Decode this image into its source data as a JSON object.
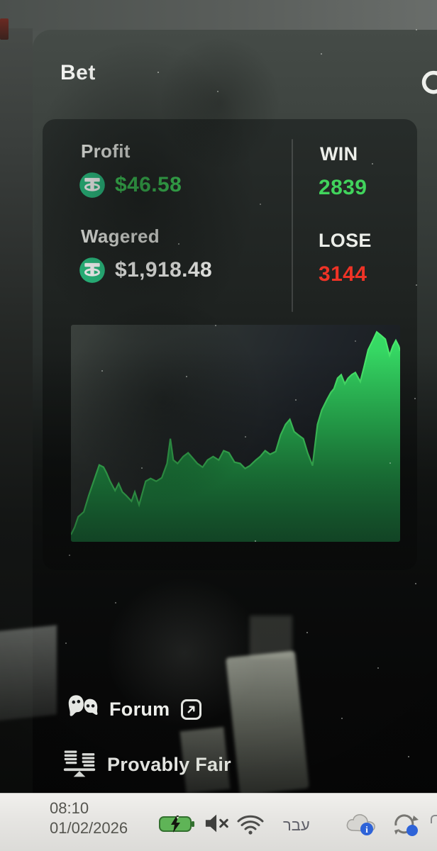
{
  "colors": {
    "accent-green": "#41d45c",
    "loss-red": "#ee3326",
    "tether-green": "#2abf81",
    "text-primary": "#f1f2ef",
    "taskbar-text": "#55554f"
  },
  "header": {
    "title": "Bet",
    "refresh_icon": "refresh-icon"
  },
  "stats": {
    "profit": {
      "label": "Profit",
      "value": "$46.58",
      "currency_icon": "tether-icon"
    },
    "wagered": {
      "label": "Wagered",
      "value": "$1,918.48",
      "currency_icon": "tether-icon"
    },
    "win": {
      "label": "WIN",
      "value": "2839"
    },
    "lose": {
      "label": "LOSE",
      "value": "3144"
    }
  },
  "chart_data": {
    "type": "area",
    "title": "",
    "xlabel": "",
    "ylabel": "",
    "x_range": [
      0,
      100
    ],
    "y_range": [
      0,
      100
    ],
    "grid": false,
    "legend": false,
    "line_color": "#49e86c",
    "fill_top": "#38dd66",
    "fill_mid": "#2bbd57",
    "fill_bottom": "#1f8746",
    "points": [
      [
        0,
        3.3
      ],
      [
        1.1,
        6.6
      ],
      [
        2.2,
        11.5
      ],
      [
        3.9,
        13.8
      ],
      [
        5.4,
        21.3
      ],
      [
        6.9,
        27.9
      ],
      [
        8.6,
        35.4
      ],
      [
        9.9,
        34.4
      ],
      [
        10.8,
        31.8
      ],
      [
        11.9,
        27.9
      ],
      [
        13.4,
        23.6
      ],
      [
        14.5,
        26.9
      ],
      [
        15.6,
        23
      ],
      [
        16.8,
        21.3
      ],
      [
        18.4,
        18.7
      ],
      [
        19.4,
        23
      ],
      [
        20.7,
        17
      ],
      [
        22.7,
        27.9
      ],
      [
        24.2,
        29.2
      ],
      [
        25.9,
        27.9
      ],
      [
        27.6,
        29.5
      ],
      [
        29.2,
        36.1
      ],
      [
        30.2,
        47.5
      ],
      [
        31.1,
        37.7
      ],
      [
        32.4,
        36.1
      ],
      [
        34.1,
        39.3
      ],
      [
        35.6,
        41
      ],
      [
        37.1,
        38.4
      ],
      [
        38.4,
        36.1
      ],
      [
        40,
        34.4
      ],
      [
        41.5,
        37.7
      ],
      [
        43.2,
        39.3
      ],
      [
        44.9,
        37.7
      ],
      [
        46.4,
        42
      ],
      [
        48,
        41
      ],
      [
        49.7,
        36.7
      ],
      [
        51.4,
        36.1
      ],
      [
        52.9,
        33.8
      ],
      [
        54.4,
        35.1
      ],
      [
        56.2,
        37.7
      ],
      [
        57.5,
        39.3
      ],
      [
        59,
        42
      ],
      [
        60.5,
        40.3
      ],
      [
        62.2,
        41.6
      ],
      [
        63.7,
        49.2
      ],
      [
        65.2,
        54.1
      ],
      [
        66.5,
        56.4
      ],
      [
        67.8,
        50.8
      ],
      [
        69.1,
        49.2
      ],
      [
        70.6,
        47.5
      ],
      [
        71.9,
        41
      ],
      [
        73.4,
        35.1
      ],
      [
        74.9,
        54.1
      ],
      [
        76.2,
        60.7
      ],
      [
        77.8,
        65.6
      ],
      [
        79,
        68.9
      ],
      [
        79.9,
        70.5
      ],
      [
        81,
        75.4
      ],
      [
        82.1,
        77
      ],
      [
        83.2,
        72.8
      ],
      [
        84.2,
        75.4
      ],
      [
        85.3,
        77
      ],
      [
        86.4,
        78
      ],
      [
        87.9,
        73.8
      ],
      [
        89,
        80.3
      ],
      [
        90.3,
        88.5
      ],
      [
        91.6,
        92.5
      ],
      [
        92.9,
        96.7
      ],
      [
        94.2,
        95.1
      ],
      [
        95.5,
        93.4
      ],
      [
        96.8,
        85.9
      ],
      [
        97.8,
        90.2
      ],
      [
        98.7,
        92.8
      ],
      [
        99.6,
        90.2
      ],
      [
        100,
        87.9
      ]
    ]
  },
  "footer": {
    "forum": {
      "label": "Forum",
      "icons": [
        "chat-bubbles-icon",
        "external-link-icon"
      ]
    },
    "provably_fair": {
      "label": "Provably Fair",
      "icon": "balance-scale-icon"
    }
  },
  "taskbar": {
    "time": "08:10",
    "date": "01/02/2026",
    "language": "עבר",
    "tray_icons": [
      "battery-charging-icon",
      "volume-muted-icon",
      "wifi-icon",
      "cloud-status-icon",
      "sync-icon"
    ]
  }
}
